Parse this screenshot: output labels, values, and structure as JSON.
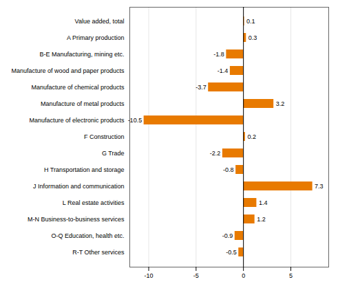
{
  "chart_data": {
    "type": "bar",
    "orientation": "horizontal",
    "categories": [
      "R-T Other services",
      "O-Q Education, health etc.",
      "M-N Business-to-business services",
      "L Real estate activities",
      "J Information and communication",
      "H Transportation and storage",
      "G Trade",
      "F Construction",
      "Manufacture of electronic products",
      "Manufacture of metal products",
      "Manufacture of chemical products",
      "Manufacture of wood and paper products",
      "B-E Manufacturing, mining etc.",
      "A Primary production",
      "Value added, total"
    ],
    "values": [
      -0.5,
      -0.9,
      1.2,
      1.4,
      7.3,
      -0.8,
      -2.2,
      0.2,
      -10.5,
      3.2,
      -3.7,
      -1.4,
      -1.8,
      0.3,
      0.1
    ],
    "color": "#E87A00",
    "xlim": [
      -12,
      9
    ],
    "xticks": [
      -10,
      -5,
      0,
      5
    ],
    "grid": true,
    "data_labels": true
  }
}
